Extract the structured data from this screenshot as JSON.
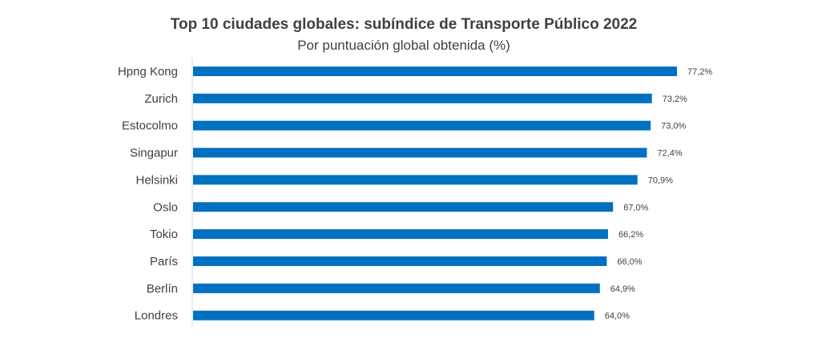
{
  "chart_data": {
    "type": "bar",
    "orientation": "horizontal",
    "title": "Top 10 ciudades globales: subíndice de Transporte Público 2022",
    "subtitle": "Por puntuación global obtenida (%)",
    "categories": [
      "Hpng Kong",
      "Zurich",
      "Estocolmo",
      "Singapur",
      "Helsinki",
      "Oslo",
      "Tokio",
      "París",
      "Berlín",
      "Londres"
    ],
    "values": [
      77.2,
      73.2,
      73.0,
      72.4,
      70.9,
      67.0,
      66.2,
      66.0,
      64.9,
      64.0
    ],
    "value_labels": [
      "77,2%",
      "73,2%",
      "73,0%",
      "72,4%",
      "70,9%",
      "67,0%",
      "66,2%",
      "66,0%",
      "64,9%",
      "64,0%"
    ],
    "bar_color": "#0070C0",
    "grid": false,
    "legend": "none"
  }
}
